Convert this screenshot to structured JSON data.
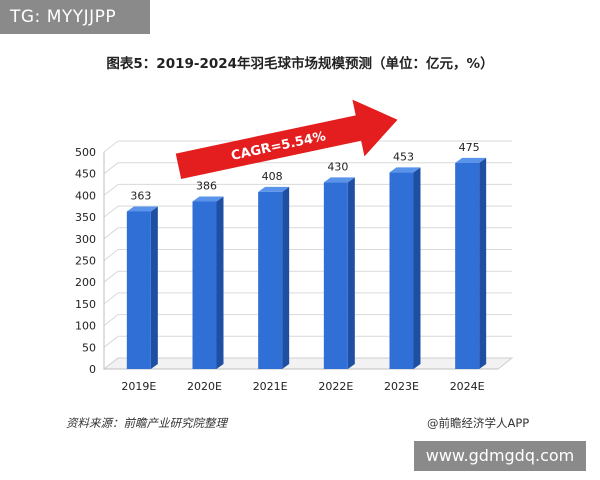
{
  "watermark": {
    "tg_label": "TG: MYYJJPP",
    "site_label": "www.gdmgdq.com"
  },
  "footer": {
    "source": "资料来源：前瞻产业研究院整理",
    "credit": "@前瞻经济学人APP"
  },
  "chart_data": {
    "type": "bar",
    "title": "图表5：2019-2024年羽毛球市场规模预测（单位：亿元，%）",
    "categories": [
      "2019E",
      "2020E",
      "2021E",
      "2022E",
      "2023E",
      "2024E"
    ],
    "values": [
      363,
      386,
      408,
      430,
      453,
      475
    ],
    "data_labels": [
      "363",
      "386",
      "408",
      "430",
      "453",
      "475"
    ],
    "yticks": [
      "0",
      "50",
      "100",
      "150",
      "200",
      "250",
      "300",
      "350",
      "400",
      "450",
      "500"
    ],
    "ylim": [
      0,
      500
    ],
    "xlabel": "",
    "ylabel": "",
    "annotation": "CAGR=5.54%",
    "grid": true,
    "legend": "none",
    "colors": {
      "bar_front": "#2f6fd6",
      "bar_side": "#1f4fa3",
      "bar_top": "#5a93ea",
      "arrow": "#e41e1e",
      "grid": "#d9d9d9"
    }
  }
}
